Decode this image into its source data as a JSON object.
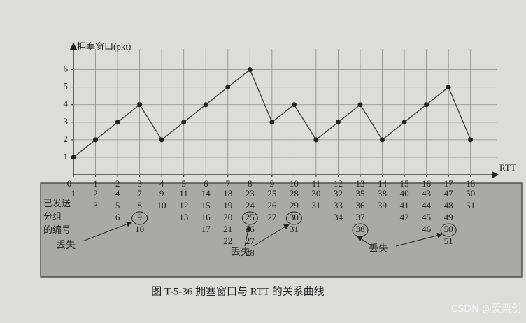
{
  "chart_data": {
    "type": "line",
    "y_label": "拥塞窗口(pkt)",
    "x_label": "RTT",
    "x": [
      0,
      1,
      2,
      3,
      4,
      5,
      6,
      7,
      8,
      9,
      10,
      11,
      12,
      13,
      14,
      15,
      16,
      17,
      18
    ],
    "values": [
      1,
      2,
      3,
      4,
      2,
      3,
      4,
      5,
      6,
      3,
      4,
      2,
      3,
      4,
      2,
      3,
      4,
      5,
      2
    ],
    "color": "#444444",
    "xlim": [
      0,
      19.5
    ],
    "xticks": [
      0,
      1,
      2,
      3,
      4,
      5,
      6,
      7,
      8,
      9,
      10,
      11,
      12,
      13,
      14,
      15,
      16,
      17,
      18
    ],
    "ylim": [
      0,
      7.5
    ],
    "yticks": [
      1,
      2,
      3,
      4,
      5,
      6
    ],
    "grid": true
  },
  "packet_table": {
    "row_label": [
      "已发送",
      "分组",
      "的编号"
    ],
    "columns": [
      [
        1
      ],
      [
        2,
        3
      ],
      [
        4,
        5,
        6
      ],
      [
        7,
        8,
        {
          "value": 9,
          "circled": true
        },
        10
      ],
      [
        9,
        10
      ],
      [
        11,
        12,
        13
      ],
      [
        14,
        15,
        16,
        17
      ],
      [
        18,
        19,
        20,
        21,
        22
      ],
      [
        23,
        24,
        {
          "value": 25,
          "circled": true
        },
        26,
        27,
        28
      ],
      [
        25,
        26,
        27
      ],
      [
        28,
        29,
        {
          "value": 30,
          "circled": true
        },
        31
      ],
      [
        30,
        31
      ],
      [
        32,
        33,
        34
      ],
      [
        35,
        36,
        37,
        {
          "value": 38,
          "circled": true
        }
      ],
      [
        38,
        39
      ],
      [
        40,
        41,
        42
      ],
      [
        43,
        44,
        45,
        46
      ],
      [
        47,
        48,
        49,
        {
          "value": 50,
          "circled": true
        },
        51
      ],
      [
        50,
        51
      ]
    ],
    "annotations": [
      "丢失",
      "丢失",
      "丢失"
    ]
  },
  "caption": "图 T-5-36   拥塞窗口与 RTT 的关系曲线",
  "watermark": "CSDN @爱栗创"
}
